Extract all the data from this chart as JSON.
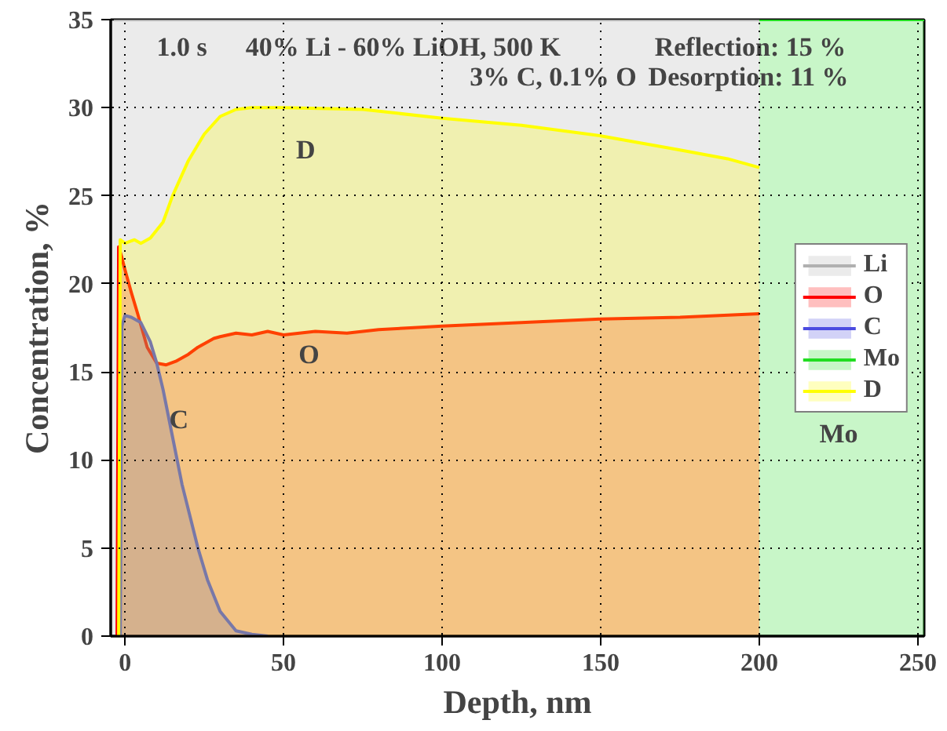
{
  "chart_data": {
    "type": "area",
    "xlabel": "Depth, nm",
    "ylabel": "Concentration, %",
    "xlim": [
      -4.5,
      252
    ],
    "ylim": [
      0,
      35
    ],
    "xticks": [
      0,
      50,
      100,
      150,
      200,
      250
    ],
    "yticks": [
      0,
      5,
      10,
      15,
      20,
      25,
      30,
      35
    ],
    "grid": true,
    "legend": "right",
    "line_style": "solid",
    "annotations": [
      "1.0 s",
      "40% Li - 60% LiOH, 500 K",
      "3% C, 0.1% O",
      "Reflection:   15 %",
      "Desorption:   11 %",
      "D",
      "O",
      "C",
      "Mo"
    ],
    "series": [
      {
        "name": "Li",
        "color": "#b0b0b0",
        "x": [
          -4,
          200
        ],
        "values": [
          35,
          35
        ]
      },
      {
        "name": "O",
        "color": "#ff0000",
        "x": [
          -2.5,
          -2,
          -1,
          0,
          2,
          4,
          7,
          10,
          13,
          16,
          20,
          23,
          25,
          28,
          30,
          35,
          40,
          45,
          50,
          60,
          70,
          80,
          90,
          100,
          125,
          150,
          175,
          200
        ],
        "values": [
          0,
          22.1,
          21.5,
          20.8,
          19.5,
          18.3,
          16.4,
          15.5,
          15.4,
          15.6,
          16,
          16.4,
          16.6,
          16.9,
          17,
          17.2,
          17.1,
          17.3,
          17.1,
          17.3,
          17.2,
          17.4,
          17.5,
          17.6,
          17.8,
          18,
          18.1,
          18.3
        ]
      },
      {
        "name": "C",
        "color": "#4b4be0",
        "x": [
          -1.5,
          -1,
          0,
          2,
          5,
          8,
          10,
          12,
          15,
          18,
          20.5,
          23,
          26,
          30,
          35,
          40,
          45
        ],
        "values": [
          0,
          17.6,
          18.2,
          18.1,
          17.8,
          16.7,
          15.5,
          14,
          11.3,
          8.6,
          6.8,
          5,
          3.2,
          1.4,
          0.3,
          0.1,
          0
        ]
      },
      {
        "name": "Mo",
        "color": "#22dd22",
        "x": [
          200,
          252
        ],
        "values": [
          35,
          35
        ]
      },
      {
        "name": "D",
        "color": "#ffff00",
        "x": [
          -2,
          -1.5,
          0,
          3,
          5,
          8,
          12,
          15,
          20,
          25,
          30,
          35,
          40,
          50,
          75,
          100,
          125,
          150,
          175,
          190,
          200
        ],
        "values": [
          0,
          22.5,
          22.3,
          22.5,
          22.3,
          22.6,
          23.5,
          25,
          27,
          28.5,
          29.5,
          29.9,
          30,
          30,
          29.9,
          29.4,
          29,
          28.4,
          27.6,
          27.1,
          26.6
        ]
      }
    ]
  }
}
